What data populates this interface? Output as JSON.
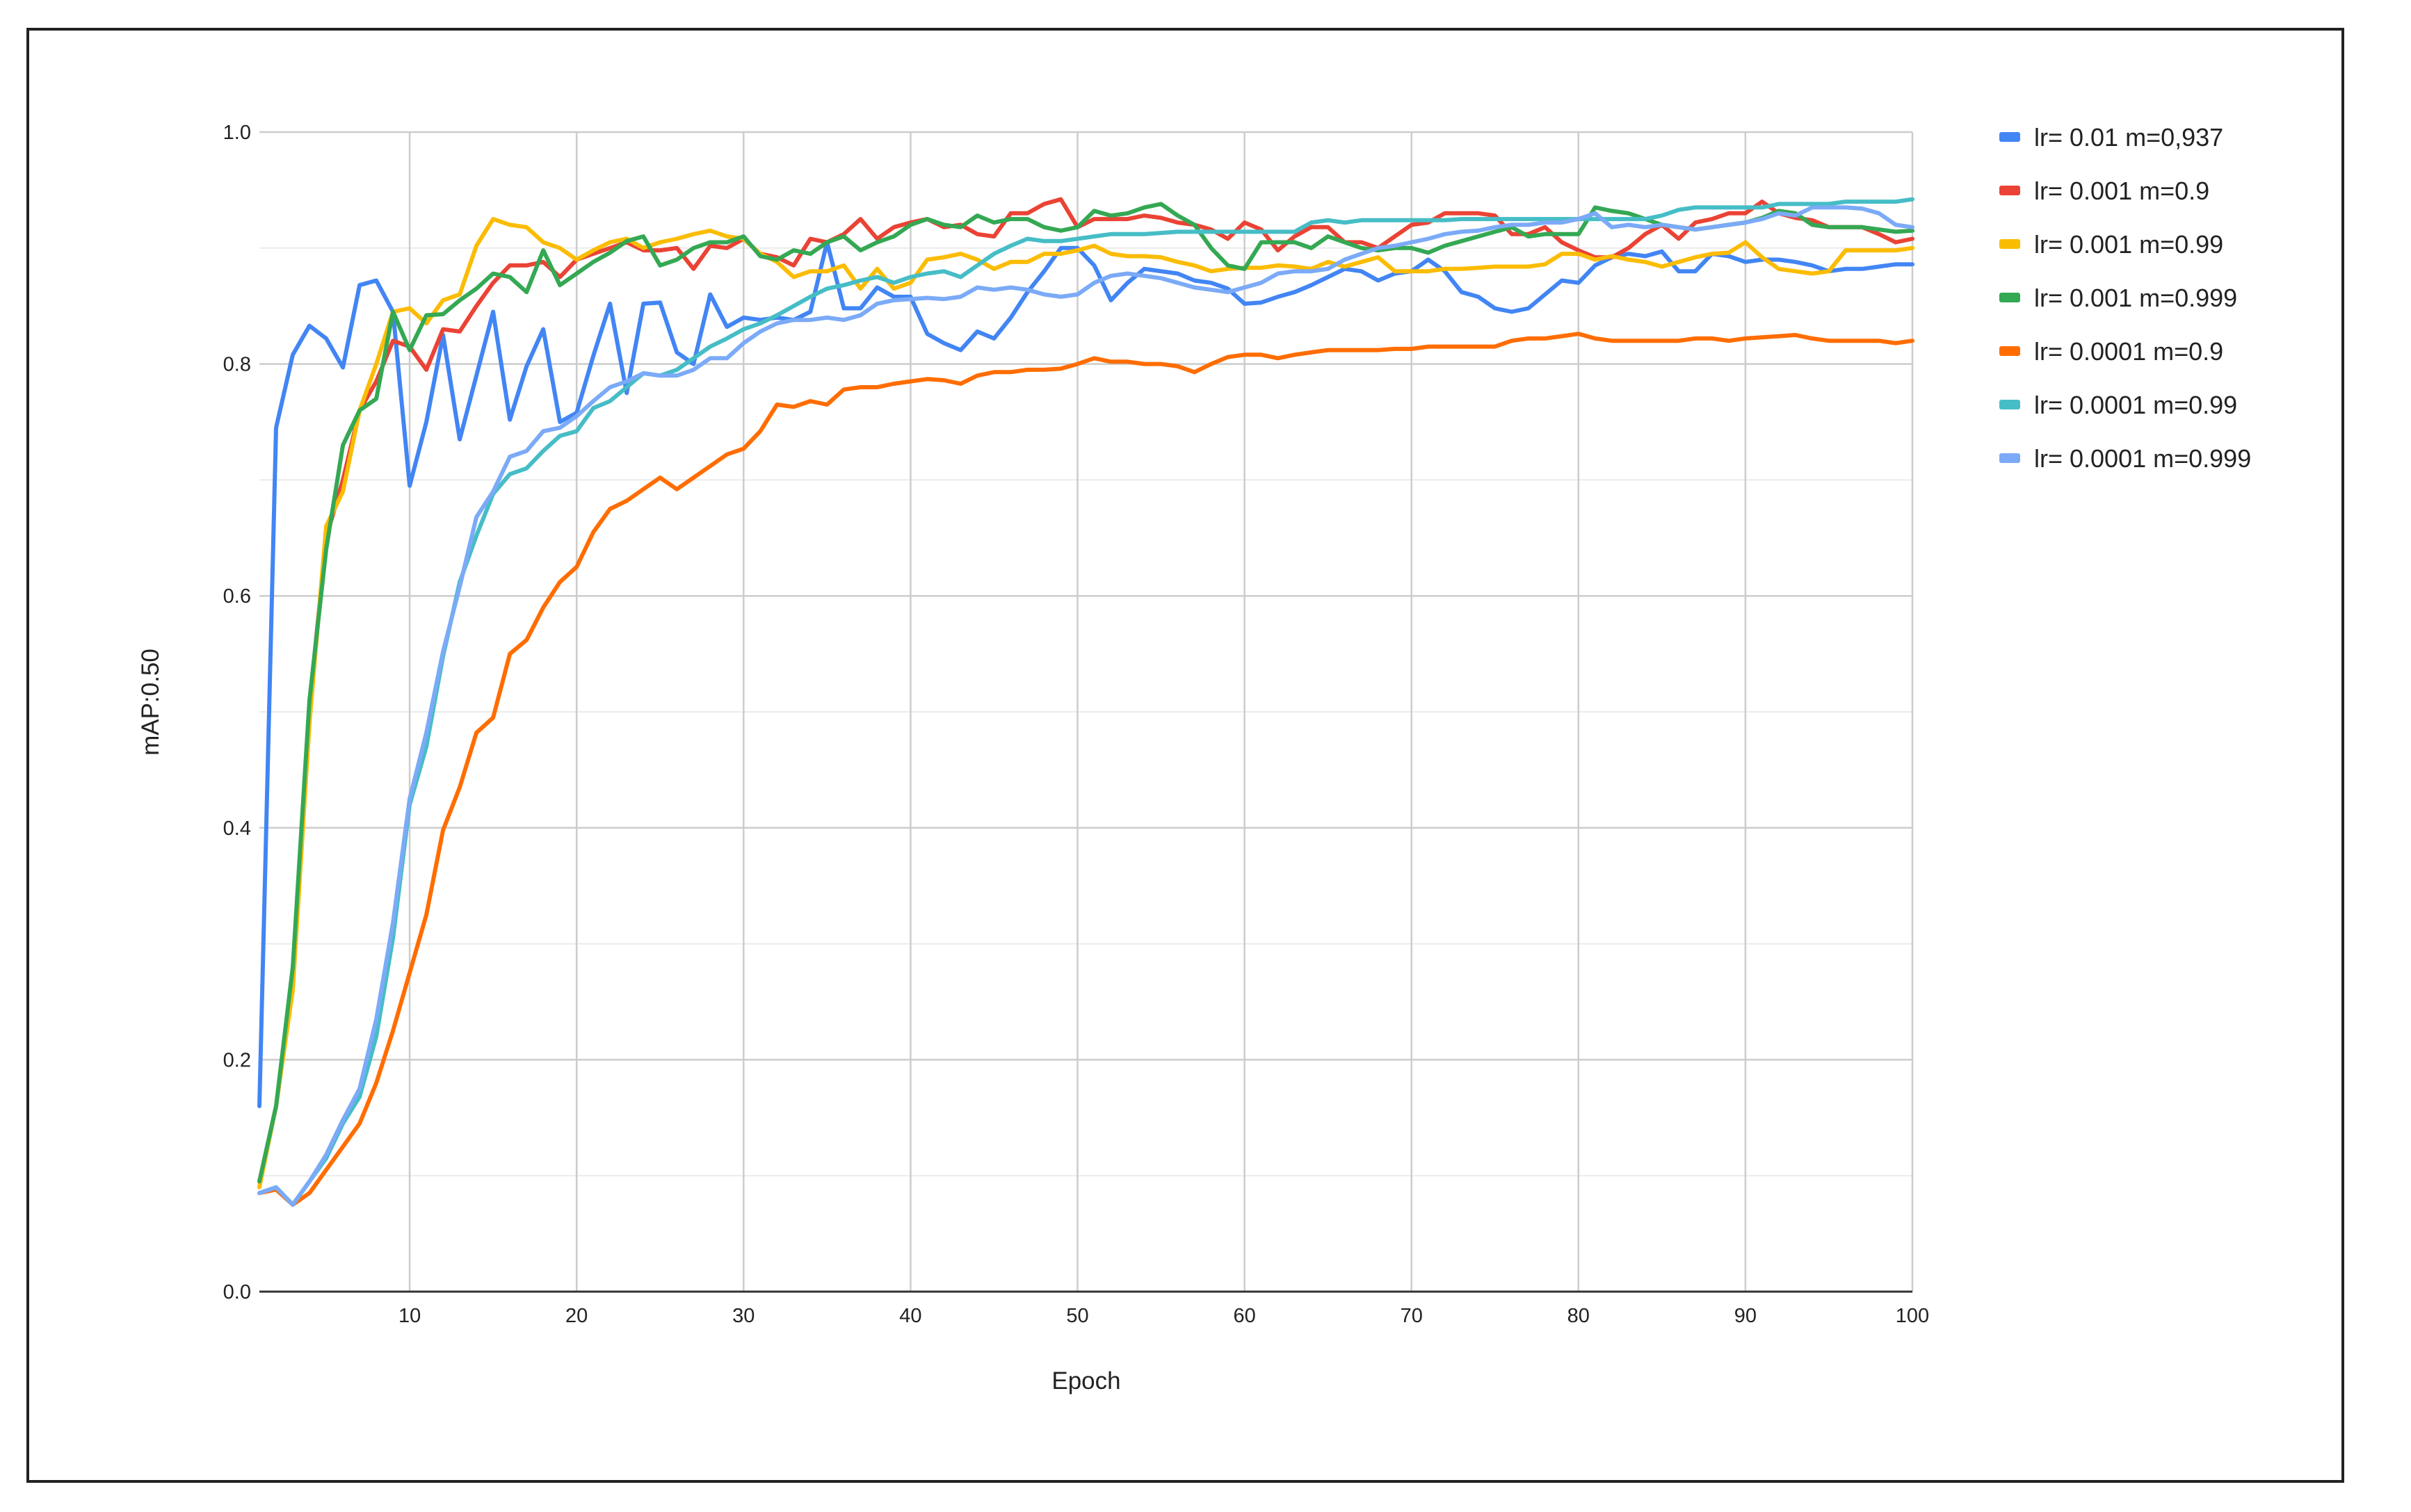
{
  "chart_data": {
    "type": "line",
    "title": "",
    "xlabel": "Epoch",
    "ylabel": "mAP:0.50",
    "xlim": [
      1,
      100
    ],
    "ylim": [
      0,
      1
    ],
    "x_ticks": [
      10,
      20,
      30,
      40,
      50,
      60,
      70,
      80,
      90,
      100
    ],
    "y_ticks": [
      0.0,
      0.2,
      0.4,
      0.6,
      0.8,
      1.0
    ],
    "y_tick_labels": [
      "0.0",
      "0.2",
      "0.4",
      "0.6",
      "0.8",
      "1.0"
    ],
    "grid": true,
    "legend_position": "right",
    "x": [
      1,
      2,
      3,
      4,
      5,
      6,
      7,
      8,
      9,
      10,
      11,
      12,
      13,
      14,
      15,
      16,
      17,
      18,
      19,
      20,
      21,
      22,
      23,
      24,
      25,
      26,
      27,
      28,
      29,
      30,
      31,
      32,
      33,
      34,
      35,
      36,
      37,
      38,
      39,
      40,
      41,
      42,
      43,
      44,
      45,
      46,
      47,
      48,
      49,
      50,
      51,
      52,
      53,
      54,
      55,
      56,
      57,
      58,
      59,
      60,
      61,
      62,
      63,
      64,
      65,
      66,
      67,
      68,
      69,
      70,
      71,
      72,
      73,
      74,
      75,
      76,
      77,
      78,
      79,
      80,
      81,
      82,
      83,
      84,
      85,
      86,
      87,
      88,
      89,
      90,
      91,
      92,
      93,
      94,
      95,
      96,
      97,
      98,
      99,
      100
    ],
    "series": [
      {
        "name": "lr= 0.01 m=0,937",
        "color": "#4285f4",
        "values": [
          0.16,
          0.745,
          0.808,
          0.833,
          0.822,
          0.797,
          0.868,
          0.872,
          0.845,
          0.695,
          0.75,
          0.825,
          0.735,
          0.79,
          0.845,
          0.752,
          0.798,
          0.83,
          0.75,
          0.758,
          0.807,
          0.852,
          0.775,
          0.852,
          0.853,
          0.81,
          0.8,
          0.86,
          0.832,
          0.84,
          0.838,
          0.84,
          0.838,
          0.845,
          0.905,
          0.848,
          0.848,
          0.866,
          0.858,
          0.858,
          0.826,
          0.818,
          0.812,
          0.828,
          0.822,
          0.84,
          0.862,
          0.88,
          0.9,
          0.9,
          0.885,
          0.855,
          0.87,
          0.882,
          0.88,
          0.878,
          0.872,
          0.87,
          0.865,
          0.852,
          0.853,
          0.858,
          0.862,
          0.868,
          0.875,
          0.882,
          0.88,
          0.872,
          0.878,
          0.88,
          0.89,
          0.88,
          0.862,
          0.858,
          0.848,
          0.845,
          0.848,
          0.86,
          0.872,
          0.87,
          0.885,
          0.892,
          0.895,
          0.893,
          0.897,
          0.88,
          0.88,
          0.895,
          0.893,
          0.888,
          0.89,
          0.89,
          0.888,
          0.885,
          0.88,
          0.882,
          0.882,
          0.884,
          0.886,
          0.886
        ]
      },
      {
        "name": "lr= 0.001 m=0.9",
        "color": "#ea4335",
        "values": [
          0.095,
          0.16,
          0.265,
          0.505,
          0.65,
          0.7,
          0.76,
          0.785,
          0.82,
          0.815,
          0.795,
          0.83,
          0.828,
          0.85,
          0.87,
          0.885,
          0.885,
          0.888,
          0.875,
          0.89,
          0.895,
          0.9,
          0.905,
          0.898,
          0.898,
          0.9,
          0.882,
          0.902,
          0.9,
          0.908,
          0.895,
          0.892,
          0.885,
          0.908,
          0.905,
          0.912,
          0.925,
          0.908,
          0.918,
          0.922,
          0.925,
          0.918,
          0.92,
          0.912,
          0.91,
          0.93,
          0.93,
          0.938,
          0.942,
          0.918,
          0.925,
          0.925,
          0.925,
          0.928,
          0.926,
          0.922,
          0.92,
          0.916,
          0.908,
          0.922,
          0.916,
          0.898,
          0.91,
          0.918,
          0.918,
          0.905,
          0.905,
          0.9,
          0.91,
          0.92,
          0.922,
          0.93,
          0.93,
          0.93,
          0.928,
          0.912,
          0.912,
          0.918,
          0.905,
          0.898,
          0.892,
          0.892,
          0.9,
          0.912,
          0.92,
          0.908,
          0.922,
          0.925,
          0.93,
          0.93,
          0.94,
          0.93,
          0.926,
          0.924,
          0.918,
          0.918,
          0.918,
          0.912,
          0.905,
          0.908
        ]
      },
      {
        "name": "lr= 0.001 m=0.99",
        "color": "#fbbc04",
        "values": [
          0.09,
          0.16,
          0.26,
          0.49,
          0.66,
          0.69,
          0.76,
          0.8,
          0.845,
          0.848,
          0.835,
          0.855,
          0.86,
          0.902,
          0.925,
          0.92,
          0.918,
          0.905,
          0.9,
          0.89,
          0.898,
          0.905,
          0.908,
          0.9,
          0.905,
          0.908,
          0.912,
          0.915,
          0.91,
          0.908,
          0.895,
          0.888,
          0.875,
          0.88,
          0.88,
          0.885,
          0.865,
          0.882,
          0.865,
          0.87,
          0.89,
          0.892,
          0.895,
          0.89,
          0.882,
          0.888,
          0.888,
          0.895,
          0.895,
          0.898,
          0.902,
          0.895,
          0.893,
          0.893,
          0.892,
          0.888,
          0.885,
          0.88,
          0.882,
          0.883,
          0.883,
          0.885,
          0.884,
          0.882,
          0.888,
          0.884,
          0.888,
          0.892,
          0.88,
          0.88,
          0.88,
          0.882,
          0.882,
          0.883,
          0.884,
          0.884,
          0.884,
          0.886,
          0.895,
          0.895,
          0.89,
          0.893,
          0.89,
          0.888,
          0.884,
          0.888,
          0.892,
          0.895,
          0.896,
          0.905,
          0.892,
          0.882,
          0.88,
          0.878,
          0.88,
          0.898,
          0.898,
          0.898,
          0.898,
          0.9
        ]
      },
      {
        "name": "lr= 0.001 m=0.999",
        "color": "#34a853",
        "values": [
          0.095,
          0.16,
          0.28,
          0.51,
          0.64,
          0.73,
          0.76,
          0.77,
          0.845,
          0.812,
          0.842,
          0.843,
          0.855,
          0.865,
          0.878,
          0.875,
          0.862,
          0.898,
          0.868,
          0.878,
          0.888,
          0.896,
          0.906,
          0.91,
          0.885,
          0.89,
          0.9,
          0.905,
          0.905,
          0.91,
          0.893,
          0.89,
          0.898,
          0.895,
          0.905,
          0.91,
          0.898,
          0.905,
          0.91,
          0.92,
          0.925,
          0.92,
          0.918,
          0.928,
          0.922,
          0.925,
          0.925,
          0.918,
          0.915,
          0.918,
          0.932,
          0.928,
          0.93,
          0.935,
          0.938,
          0.928,
          0.92,
          0.9,
          0.885,
          0.882,
          0.905,
          0.905,
          0.905,
          0.9,
          0.91,
          0.905,
          0.9,
          0.898,
          0.9,
          0.9,
          0.896,
          0.902,
          0.906,
          0.91,
          0.914,
          0.918,
          0.91,
          0.912,
          0.912,
          0.912,
          0.935,
          0.932,
          0.93,
          0.925,
          0.92,
          0.918,
          0.916,
          0.918,
          0.92,
          0.922,
          0.926,
          0.932,
          0.93,
          0.92,
          0.918,
          0.918,
          0.918,
          0.916,
          0.914,
          0.915
        ]
      },
      {
        "name": "lr= 0.0001 m=0.9",
        "color": "#ff6d01",
        "values": [
          0.085,
          0.088,
          0.075,
          0.085,
          0.105,
          0.125,
          0.145,
          0.18,
          0.225,
          0.275,
          0.325,
          0.398,
          0.435,
          0.482,
          0.495,
          0.55,
          0.562,
          0.59,
          0.612,
          0.625,
          0.655,
          0.675,
          0.682,
          0.692,
          0.702,
          0.692,
          0.702,
          0.712,
          0.722,
          0.727,
          0.742,
          0.765,
          0.763,
          0.768,
          0.765,
          0.778,
          0.78,
          0.78,
          0.783,
          0.785,
          0.787,
          0.786,
          0.783,
          0.79,
          0.793,
          0.793,
          0.795,
          0.795,
          0.796,
          0.8,
          0.805,
          0.802,
          0.802,
          0.8,
          0.8,
          0.798,
          0.793,
          0.8,
          0.806,
          0.808,
          0.808,
          0.805,
          0.808,
          0.81,
          0.812,
          0.812,
          0.812,
          0.812,
          0.813,
          0.813,
          0.815,
          0.815,
          0.815,
          0.815,
          0.815,
          0.82,
          0.822,
          0.822,
          0.824,
          0.826,
          0.822,
          0.82,
          0.82,
          0.82,
          0.82,
          0.82,
          0.822,
          0.822,
          0.82,
          0.822,
          0.823,
          0.824,
          0.825,
          0.822,
          0.82,
          0.82,
          0.82,
          0.82,
          0.818,
          0.82
        ]
      },
      {
        "name": "lr= 0.0001 m=0.99",
        "color": "#46bdc6",
        "values": [
          0.085,
          0.09,
          0.075,
          0.095,
          0.115,
          0.145,
          0.168,
          0.22,
          0.305,
          0.42,
          0.47,
          0.548,
          0.612,
          0.652,
          0.688,
          0.705,
          0.71,
          0.725,
          0.738,
          0.742,
          0.762,
          0.768,
          0.78,
          0.792,
          0.79,
          0.795,
          0.805,
          0.815,
          0.822,
          0.83,
          0.835,
          0.842,
          0.85,
          0.858,
          0.865,
          0.868,
          0.872,
          0.875,
          0.87,
          0.875,
          0.878,
          0.88,
          0.875,
          0.885,
          0.895,
          0.902,
          0.908,
          0.906,
          0.906,
          0.908,
          0.91,
          0.912,
          0.912,
          0.912,
          0.913,
          0.914,
          0.914,
          0.914,
          0.914,
          0.914,
          0.914,
          0.914,
          0.914,
          0.922,
          0.924,
          0.922,
          0.924,
          0.924,
          0.924,
          0.924,
          0.924,
          0.924,
          0.925,
          0.925,
          0.925,
          0.925,
          0.925,
          0.925,
          0.925,
          0.925,
          0.925,
          0.925,
          0.925,
          0.925,
          0.928,
          0.933,
          0.935,
          0.935,
          0.935,
          0.935,
          0.935,
          0.938,
          0.938,
          0.938,
          0.938,
          0.94,
          0.94,
          0.94,
          0.94,
          0.942
        ]
      },
      {
        "name": "lr= 0.0001 m=0.999",
        "color": "#7baaf7",
        "values": [
          0.085,
          0.09,
          0.075,
          0.095,
          0.118,
          0.148,
          0.175,
          0.235,
          0.318,
          0.425,
          0.482,
          0.552,
          0.608,
          0.668,
          0.69,
          0.72,
          0.725,
          0.742,
          0.745,
          0.755,
          0.768,
          0.78,
          0.785,
          0.792,
          0.79,
          0.79,
          0.795,
          0.805,
          0.805,
          0.818,
          0.828,
          0.835,
          0.838,
          0.838,
          0.84,
          0.838,
          0.842,
          0.852,
          0.855,
          0.856,
          0.857,
          0.856,
          0.858,
          0.866,
          0.864,
          0.866,
          0.864,
          0.86,
          0.858,
          0.86,
          0.87,
          0.876,
          0.878,
          0.876,
          0.874,
          0.87,
          0.866,
          0.864,
          0.862,
          0.866,
          0.87,
          0.878,
          0.88,
          0.88,
          0.882,
          0.89,
          0.895,
          0.9,
          0.902,
          0.905,
          0.908,
          0.912,
          0.914,
          0.915,
          0.918,
          0.92,
          0.92,
          0.922,
          0.922,
          0.925,
          0.93,
          0.918,
          0.92,
          0.918,
          0.92,
          0.918,
          0.916,
          0.918,
          0.92,
          0.922,
          0.925,
          0.93,
          0.928,
          0.935,
          0.935,
          0.935,
          0.934,
          0.93,
          0.92,
          0.918
        ]
      }
    ]
  }
}
